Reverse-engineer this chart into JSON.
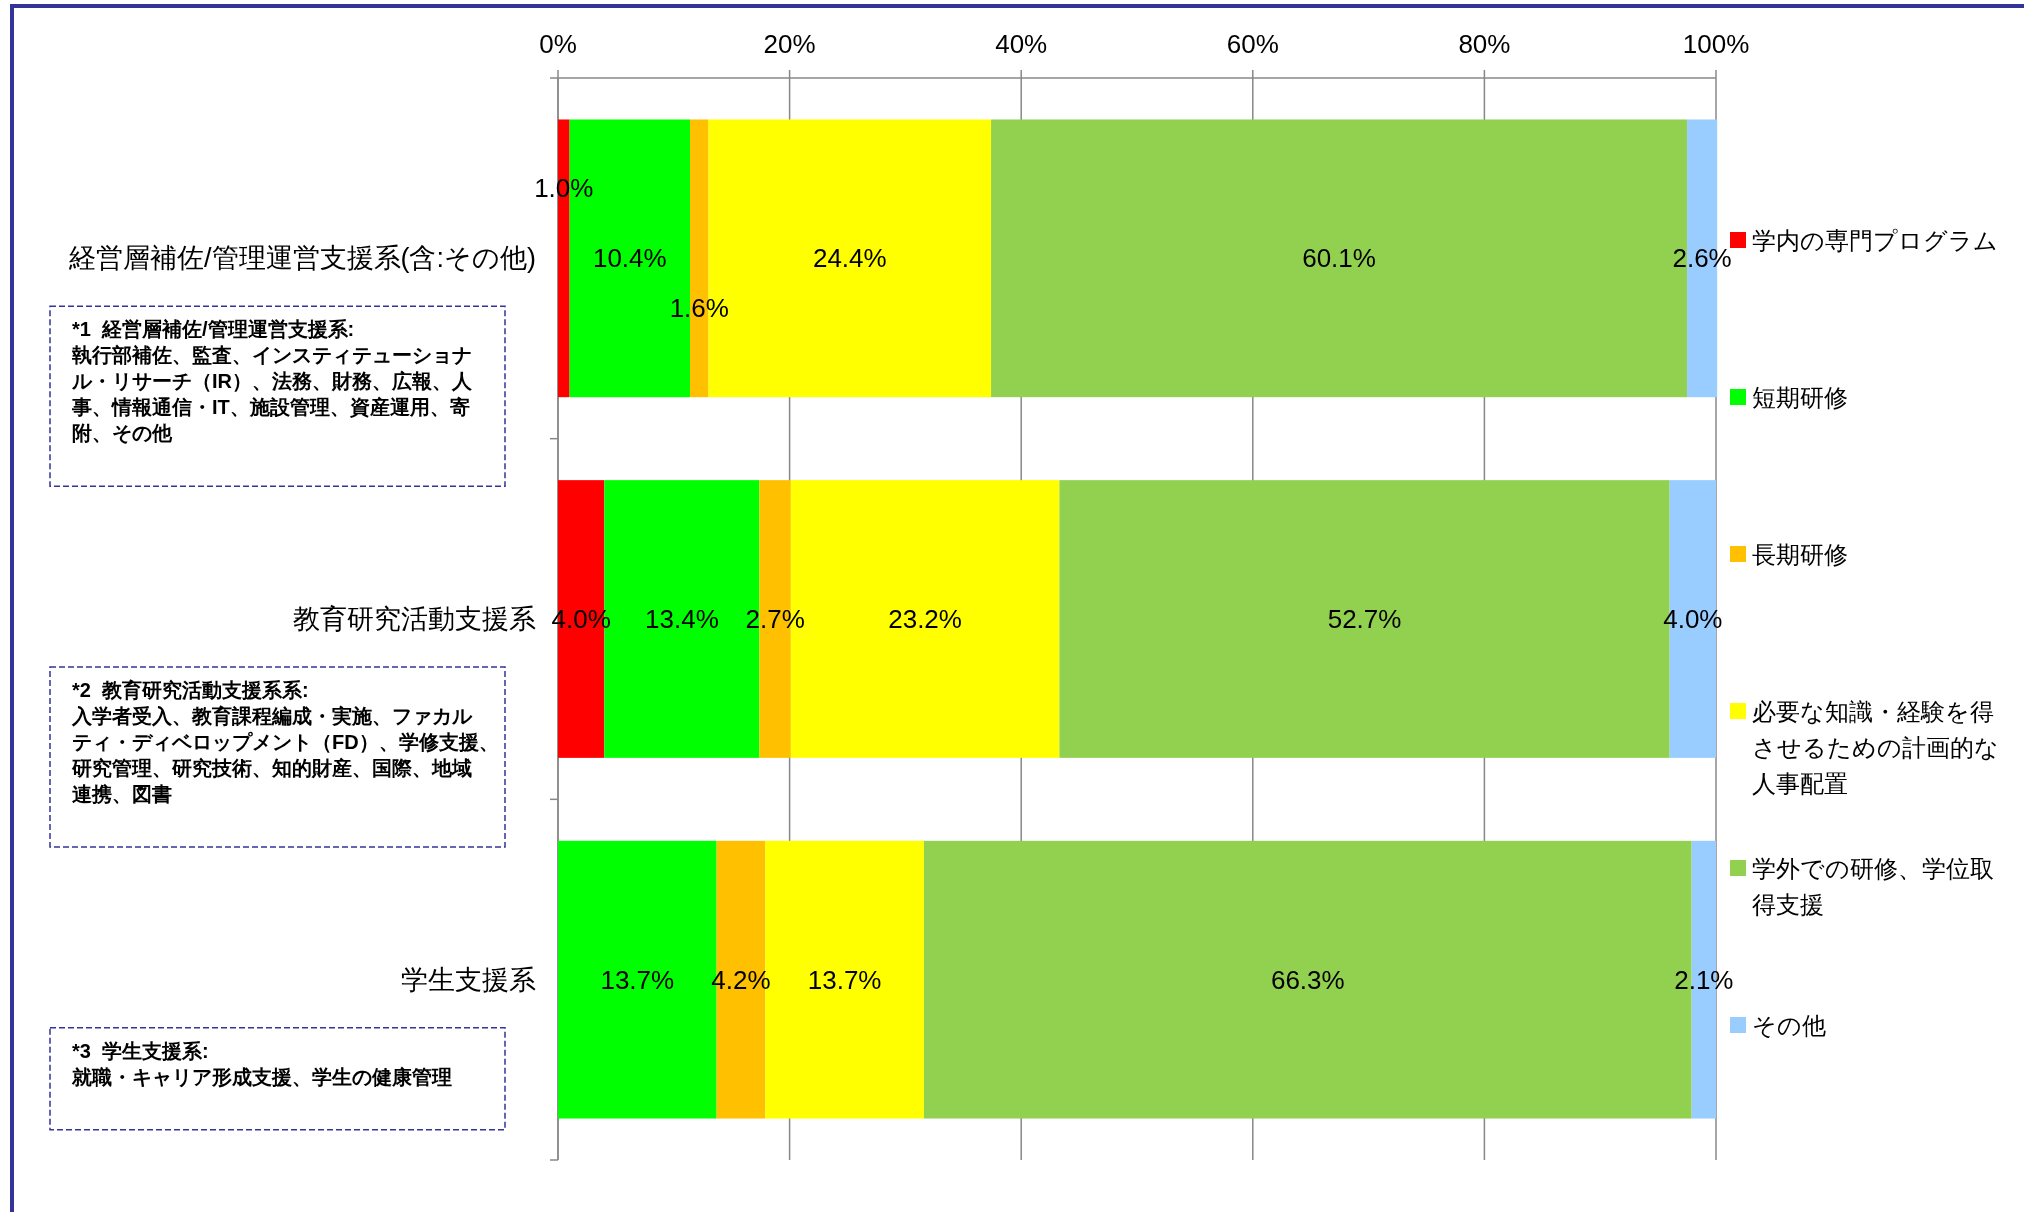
{
  "chart_data": {
    "type": "bar",
    "orientation": "horizontal",
    "stacked": true,
    "categories": [
      "経営層補佐/管理運営支援系(含:その他)",
      "教育研究活動支援系",
      "学生支援系"
    ],
    "series": [
      {
        "name": "学内の専門プログラム",
        "color": "#ff0000",
        "values": [
          1.0,
          4.0,
          0
        ],
        "value_labels": [
          "1.0%",
          "4.0%",
          null
        ]
      },
      {
        "name": "短期研修",
        "color": "#00ff00",
        "values": [
          10.4,
          13.4,
          13.7
        ],
        "value_labels": [
          "10.4%",
          "13.4%",
          "13.7%"
        ]
      },
      {
        "name": "長期研修",
        "color": "#ffc000",
        "values": [
          1.6,
          2.7,
          4.2
        ],
        "value_labels": [
          "1.6%",
          "2.7%",
          "4.2%"
        ]
      },
      {
        "name": "必要な知識・経験を得させるための計画的な人事配置",
        "color": "#ffff00",
        "values": [
          24.4,
          23.2,
          13.7
        ],
        "value_labels": [
          "24.4%",
          "23.2%",
          "13.7%"
        ]
      },
      {
        "name": "学外での研修、学位取得支援",
        "color": "#92d050",
        "values": [
          60.1,
          52.7,
          66.3
        ],
        "value_labels": [
          "60.1%",
          "52.7%",
          "66.3%"
        ]
      },
      {
        "name": "その他",
        "color": "#99ccff",
        "values": [
          2.6,
          4.0,
          2.1
        ],
        "value_labels": [
          "2.6%",
          "4.0%",
          "2.1%"
        ]
      }
    ],
    "xlim": [
      0,
      100
    ],
    "xticks": [
      {
        "value": 0,
        "label": "0%"
      },
      {
        "value": 20,
        "label": "20%"
      },
      {
        "value": 40,
        "label": "40%"
      },
      {
        "value": 60,
        "label": "60%"
      },
      {
        "value": 80,
        "label": "80%"
      },
      {
        "value": 100,
        "label": "100%"
      }
    ],
    "grid": "x",
    "legend": "right",
    "annotations": [
      "*1  経営層補佐/管理運営支援系:\n執行部補佐、監査、インスティテューショナル・リサーチ（IR）、法務、財務、広報、人事、情報通信・IT、施設管理、資産運用、寄附、その他",
      "*2  教育研究活動支援系系:\n入学者受入、教育課程編成・実施、ファカルティ・ディベロップメント（FD）、学修支援、研究管理、研究技術、知的財産、国際、地域連携、図書",
      "*3  学生支援系:\n就職・キャリア形成支援、学生の健康管理"
    ]
  }
}
